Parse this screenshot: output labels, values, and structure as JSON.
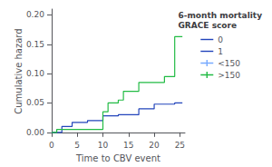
{
  "chart_data": {
    "type": "line",
    "title": "6-month mortality\nGRACE score",
    "xlabel": "Time to CBV event",
    "ylabel": "Cumulative hazard",
    "xlim": [
      0,
      26
    ],
    "ylim": [
      -0.002,
      0.21
    ],
    "xticks": [
      0,
      5,
      10,
      15,
      20,
      25
    ],
    "yticks": [
      {
        "value": 0.0,
        "label": "0.00"
      },
      0.05,
      {
        "value": 0.1,
        "label": "0.10"
      },
      0.15,
      {
        "value": 0.2,
        "label": "0.20"
      }
    ],
    "grid": false,
    "legend": "right",
    "series": [
      {
        "color": "#2244bb",
        "x": [
          0,
          2,
          2,
          4,
          4,
          7,
          7,
          10,
          10,
          13,
          13,
          17,
          17,
          20,
          20,
          24,
          24,
          25.5
        ],
        "values": [
          0,
          0,
          0.01,
          0.01,
          0.017,
          0.017,
          0.02,
          0.02,
          0.028,
          0.028,
          0.03,
          0.03,
          0.04,
          0.04,
          0.048,
          0.048,
          0.05,
          0.05
        ]
      },
      {
        "color": "#22bb44",
        "x": [
          0,
          1,
          1,
          3,
          3,
          10,
          10,
          11,
          11,
          13,
          13,
          14,
          14,
          17,
          17,
          22,
          22,
          24,
          24,
          25,
          25,
          25.5
        ],
        "values": [
          0.0,
          0.0,
          0.005,
          0.005,
          0.005,
          0.005,
          0.035,
          0.035,
          0.05,
          0.05,
          0.055,
          0.055,
          0.07,
          0.07,
          0.085,
          0.085,
          0.095,
          0.095,
          0.163,
          0.163,
          0.163,
          0.163
        ]
      },
      {
        "name": "0",
        "color": "#2244bb",
        "x": [],
        "values": []
      },
      {
        "name": "1",
        "color": "#2244bb",
        "x": [],
        "values": []
      },
      {
        "name": "<150",
        "color": "#77aaff",
        "marker": "tick",
        "x": [],
        "values": []
      },
      {
        "name": ">150",
        "color": "#22bb44",
        "marker": "tick",
        "x": [],
        "values": []
      }
    ]
  }
}
